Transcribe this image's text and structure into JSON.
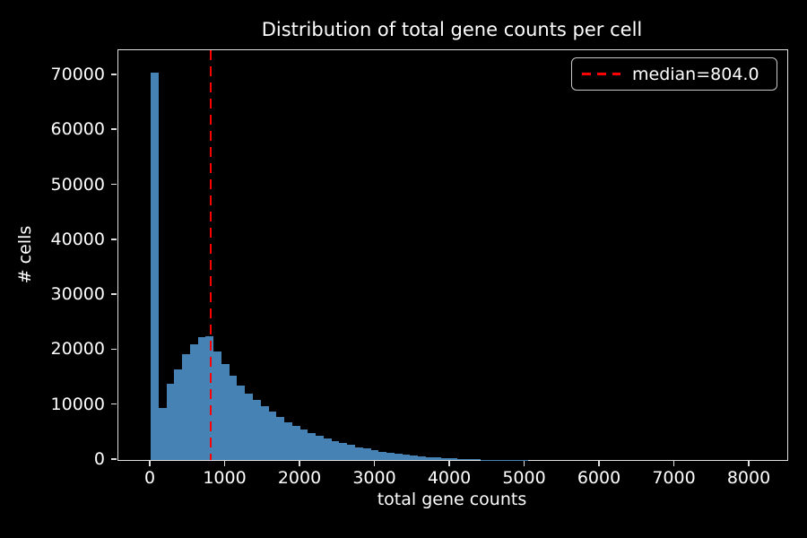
{
  "chart_data": {
    "type": "bar",
    "subtype": "histogram",
    "title": "Distribution of total gene counts per cell",
    "xlabel": "total gene counts",
    "ylabel": "# cells",
    "legend_label": "median=804.0",
    "legend_position": "upper right",
    "median": 804.0,
    "bar_color": "#4682b4",
    "median_line_color": "#ff0000",
    "median_line_style": "dashed",
    "background_color": "#000000",
    "text_color": "#ffffff",
    "grid": false,
    "bin_start": 0,
    "bin_width": 105,
    "counts": [
      70500,
      9500,
      13800,
      16400,
      19300,
      21100,
      22300,
      22500,
      19800,
      17400,
      15300,
      13600,
      12000,
      10900,
      9800,
      8800,
      7800,
      6900,
      6200,
      5500,
      4900,
      4400,
      3900,
      3450,
      3050,
      2700,
      2350,
      2050,
      1750,
      1500,
      1280,
      1080,
      900,
      750,
      620,
      510,
      420,
      340,
      270,
      210,
      160,
      120,
      60,
      40,
      30,
      25,
      20,
      15,
      12,
      10,
      8,
      7,
      6,
      5,
      5,
      4,
      4,
      3,
      3,
      2,
      2,
      2,
      2,
      1,
      1,
      1,
      1,
      1,
      1,
      1,
      1,
      1,
      1,
      0,
      0,
      1,
      0,
      0,
      0,
      1
    ],
    "x_ticks": [
      0,
      1000,
      2000,
      3000,
      4000,
      5000,
      6000,
      7000,
      8000
    ],
    "y_ticks": [
      0,
      10000,
      20000,
      30000,
      40000,
      50000,
      60000,
      70000
    ],
    "xlim": [
      -430,
      8500
    ],
    "ylim": [
      0,
      74500
    ]
  }
}
